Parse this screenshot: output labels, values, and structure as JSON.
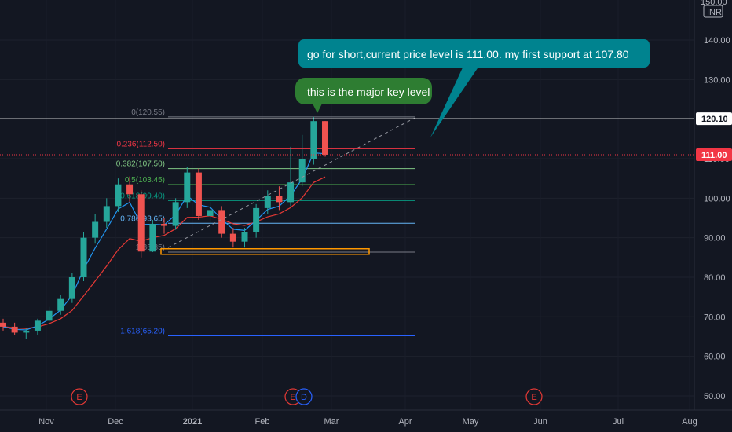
{
  "currency": "INR",
  "top_label": "150.00",
  "price_axis": [
    "140.00",
    "130.00",
    "120.00",
    "110.00",
    "100.00",
    "90.00",
    "80.00",
    "70.00",
    "60.00",
    "50.00"
  ],
  "time_axis": [
    "Nov",
    "Dec",
    "2021",
    "Feb",
    "Mar",
    "Apr",
    "May",
    "Jun",
    "Jul",
    "Aug"
  ],
  "fib_levels": [
    {
      "label": "0(120.55)",
      "price": 120.55,
      "color": "#787b86"
    },
    {
      "label": "0.236(112.50)",
      "price": 112.5,
      "color": "#f23645"
    },
    {
      "label": "0.382(107.50)",
      "price": 107.5,
      "color": "#81c784"
    },
    {
      "label": "0.5(103.45)",
      "price": 103.45,
      "color": "#4caf50"
    },
    {
      "label": "0.618(99.40)",
      "price": 99.4,
      "color": "#089981"
    },
    {
      "label": "0.786(93.65)",
      "price": 93.65,
      "color": "#64b5f6"
    },
    {
      "label": "1(86.35)",
      "price": 86.35,
      "color": "#787b86"
    },
    {
      "label": "1.618(65.20)",
      "price": 65.2,
      "color": "#2962ff"
    }
  ],
  "price_tags": {
    "resistance": {
      "value": "120.10",
      "price": 120.1,
      "bg": "#ffffff",
      "fg": "#131722"
    },
    "current": {
      "value": "111.00",
      "price": 111.0,
      "bg": "#f23645",
      "fg": "#ffffff"
    }
  },
  "callouts": {
    "short_note": "go for short,current price level is 111.00. my first support at 107.80",
    "key_level_note": "this is the major key level"
  },
  "event_markers": [
    "E",
    "E",
    "D",
    "E"
  ],
  "colors": {
    "up": "#26a69a",
    "down": "#ef5350",
    "ema_fast": "#2196f3",
    "ema_slow": "#e53935",
    "callout_teal": "#00838f",
    "callout_green": "#2e7d32",
    "zone": "#ff9800"
  },
  "chart_data": {
    "type": "candlestick",
    "x": [
      "Oct 29",
      "Nov 2",
      "Nov 5",
      "Nov 10",
      "Nov 16",
      "Nov 19",
      "Nov 24",
      "Nov 27",
      "Dec 2",
      "Dec 7",
      "Dec 11",
      "Dec 16",
      "Dec 21",
      "Dec 24",
      "Dec 30",
      "Jan 6",
      "Jan 12",
      "Jan 15",
      "Jan 20",
      "Jan 25",
      "Jan 28",
      "Feb 2",
      "Feb 5",
      "Feb 10",
      "Feb 15",
      "Feb 18",
      "Feb 22",
      "Feb 25",
      "Feb 26"
    ],
    "open": [
      68.5,
      67.5,
      66.0,
      66.5,
      69.0,
      71.5,
      74.5,
      80.0,
      90.0,
      94.0,
      98.0,
      103.5,
      101.0,
      86.5,
      93.5,
      93.0,
      99.0,
      106.5,
      95.5,
      97.0,
      91.0,
      89.0,
      91.5,
      97.5,
      100.5,
      99.0,
      104.0,
      110.0,
      119.5
    ],
    "close": [
      67.5,
      66.0,
      66.5,
      69.0,
      71.5,
      74.5,
      80.0,
      90.0,
      94.0,
      98.0,
      103.5,
      101.0,
      86.5,
      93.5,
      93.0,
      99.0,
      106.5,
      95.5,
      97.0,
      91.0,
      89.0,
      91.5,
      97.5,
      100.5,
      99.0,
      104.0,
      110.0,
      119.5,
      111.0
    ],
    "high": [
      69.5,
      68.5,
      67.0,
      69.5,
      72.5,
      75.5,
      81.0,
      91.5,
      96.0,
      100.0,
      105.0,
      105.5,
      102.0,
      94.5,
      95.0,
      100.0,
      108.0,
      107.5,
      99.0,
      98.0,
      92.5,
      92.5,
      98.5,
      102.0,
      103.0,
      113.0,
      116.0,
      120.55,
      119.5
    ],
    "low": [
      66.5,
      65.5,
      64.5,
      65.5,
      68.0,
      70.5,
      73.5,
      79.0,
      88.5,
      92.5,
      96.5,
      99.0,
      85.0,
      86.35,
      91.0,
      92.0,
      97.5,
      94.5,
      93.5,
      90.0,
      87.5,
      87.5,
      90.0,
      96.0,
      97.0,
      98.0,
      103.0,
      108.5,
      110.5
    ],
    "ylim": [
      48,
      153
    ]
  }
}
